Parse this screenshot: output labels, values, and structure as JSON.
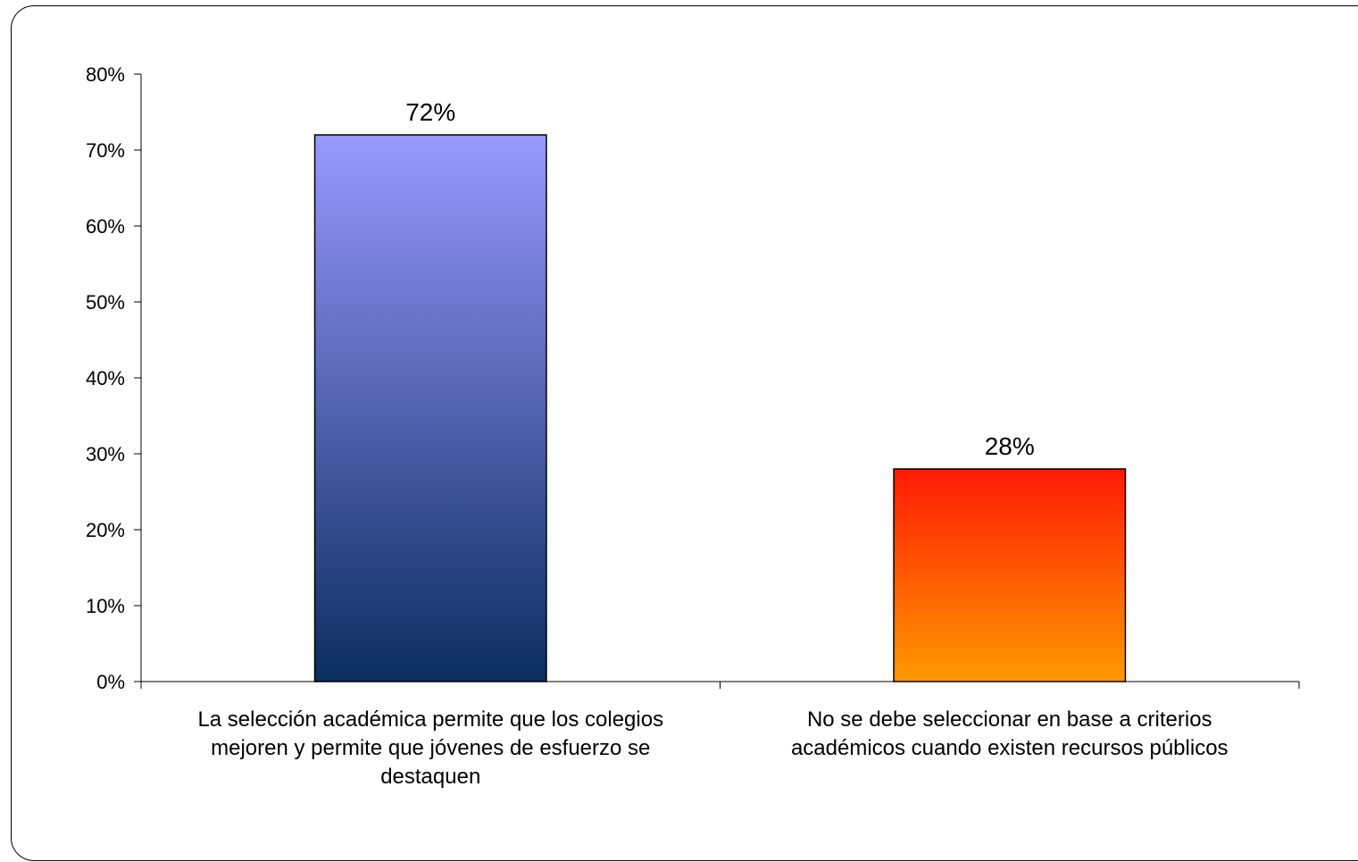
{
  "chart_data": {
    "type": "bar",
    "categories": [
      [
        "La selección académica permite que los colegios",
        "mejoren y permite que jóvenes de esfuerzo se",
        "destaquen"
      ],
      [
        "No se debe seleccionar en base a criterios",
        "académicos cuando existen recursos públicos"
      ]
    ],
    "values": [
      72,
      28
    ],
    "data_labels": [
      "72%",
      "28%"
    ],
    "ylim": [
      0,
      80
    ],
    "yticks": [
      0,
      10,
      20,
      30,
      40,
      50,
      60,
      70,
      80
    ],
    "ytick_labels": [
      "0%",
      "10%",
      "20%",
      "30%",
      "40%",
      "50%",
      "60%",
      "70%",
      "80%"
    ],
    "grid": false,
    "legend": "none",
    "colors": [
      {
        "top": "#9999ff",
        "bottom": "#0b2d5e"
      },
      {
        "top": "#ff1a05",
        "bottom": "#ff9900"
      }
    ]
  }
}
